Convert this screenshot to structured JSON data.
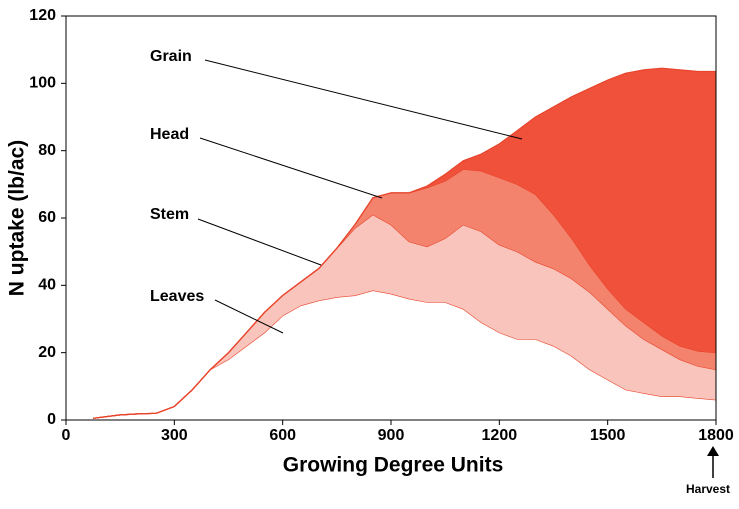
{
  "chart_data": {
    "type": "stacked-area",
    "x_label": "Growing Degree Units",
    "y_label": "N uptake (lb/ac)",
    "x": [
      75,
      150,
      200,
      250,
      300,
      350,
      400,
      450,
      500,
      550,
      600,
      650,
      700,
      750,
      800,
      850,
      900,
      950,
      1000,
      1050,
      1100,
      1150,
      1200,
      1250,
      1300,
      1350,
      1400,
      1450,
      1500,
      1550,
      1600,
      1650,
      1700,
      1750,
      1800
    ],
    "series": [
      {
        "name": "Leaves",
        "color": "#ffffff",
        "values": [
          0.5,
          1.5,
          1.8,
          2,
          4,
          9,
          15,
          18,
          22,
          26,
          31,
          34,
          35.5,
          36.5,
          37,
          38.5,
          37.5,
          36,
          35,
          35,
          33,
          29,
          26,
          24,
          24,
          22,
          19,
          15,
          12,
          9,
          8,
          7,
          7,
          6.5,
          6
        ]
      },
      {
        "name": "Stem",
        "color": "#f9c4bb",
        "values": [
          0,
          0,
          0,
          0,
          0,
          0,
          0,
          2,
          4,
          6,
          6,
          7,
          9.5,
          14.5,
          20,
          22.5,
          20.5,
          17,
          16.5,
          19,
          25,
          27,
          26,
          26,
          23,
          23,
          23,
          23,
          21,
          19,
          16,
          14,
          11,
          9.5,
          9
        ]
      },
      {
        "name": "Head",
        "color": "#f4836e",
        "values": [
          0,
          0,
          0,
          0,
          0,
          0,
          0,
          0,
          0,
          0,
          0,
          0,
          0,
          0,
          1,
          5,
          9.5,
          14.5,
          17.5,
          17,
          16.5,
          18,
          20,
          20,
          20,
          16,
          12,
          8,
          6,
          5,
          5,
          4,
          4,
          4.5,
          5
        ]
      },
      {
        "name": "Grain",
        "color": "#f0513a",
        "values": [
          0,
          0,
          0,
          0,
          0,
          0,
          0,
          0,
          0,
          0,
          0,
          0,
          0,
          0,
          0,
          0,
          0,
          0,
          0.5,
          2,
          2.5,
          5,
          10,
          16,
          23,
          32,
          42,
          52.5,
          62,
          70,
          75,
          79.5,
          82,
          83,
          83.5
        ]
      }
    ],
    "line_color": "#e8452c",
    "xlim": [
      0,
      1800
    ],
    "xticks": [
      0,
      300,
      600,
      900,
      1200,
      1500,
      1800
    ],
    "ylim": [
      0,
      120
    ],
    "yticks": [
      0,
      20,
      40,
      60,
      80,
      100,
      120
    ],
    "marker": "Harvest"
  }
}
